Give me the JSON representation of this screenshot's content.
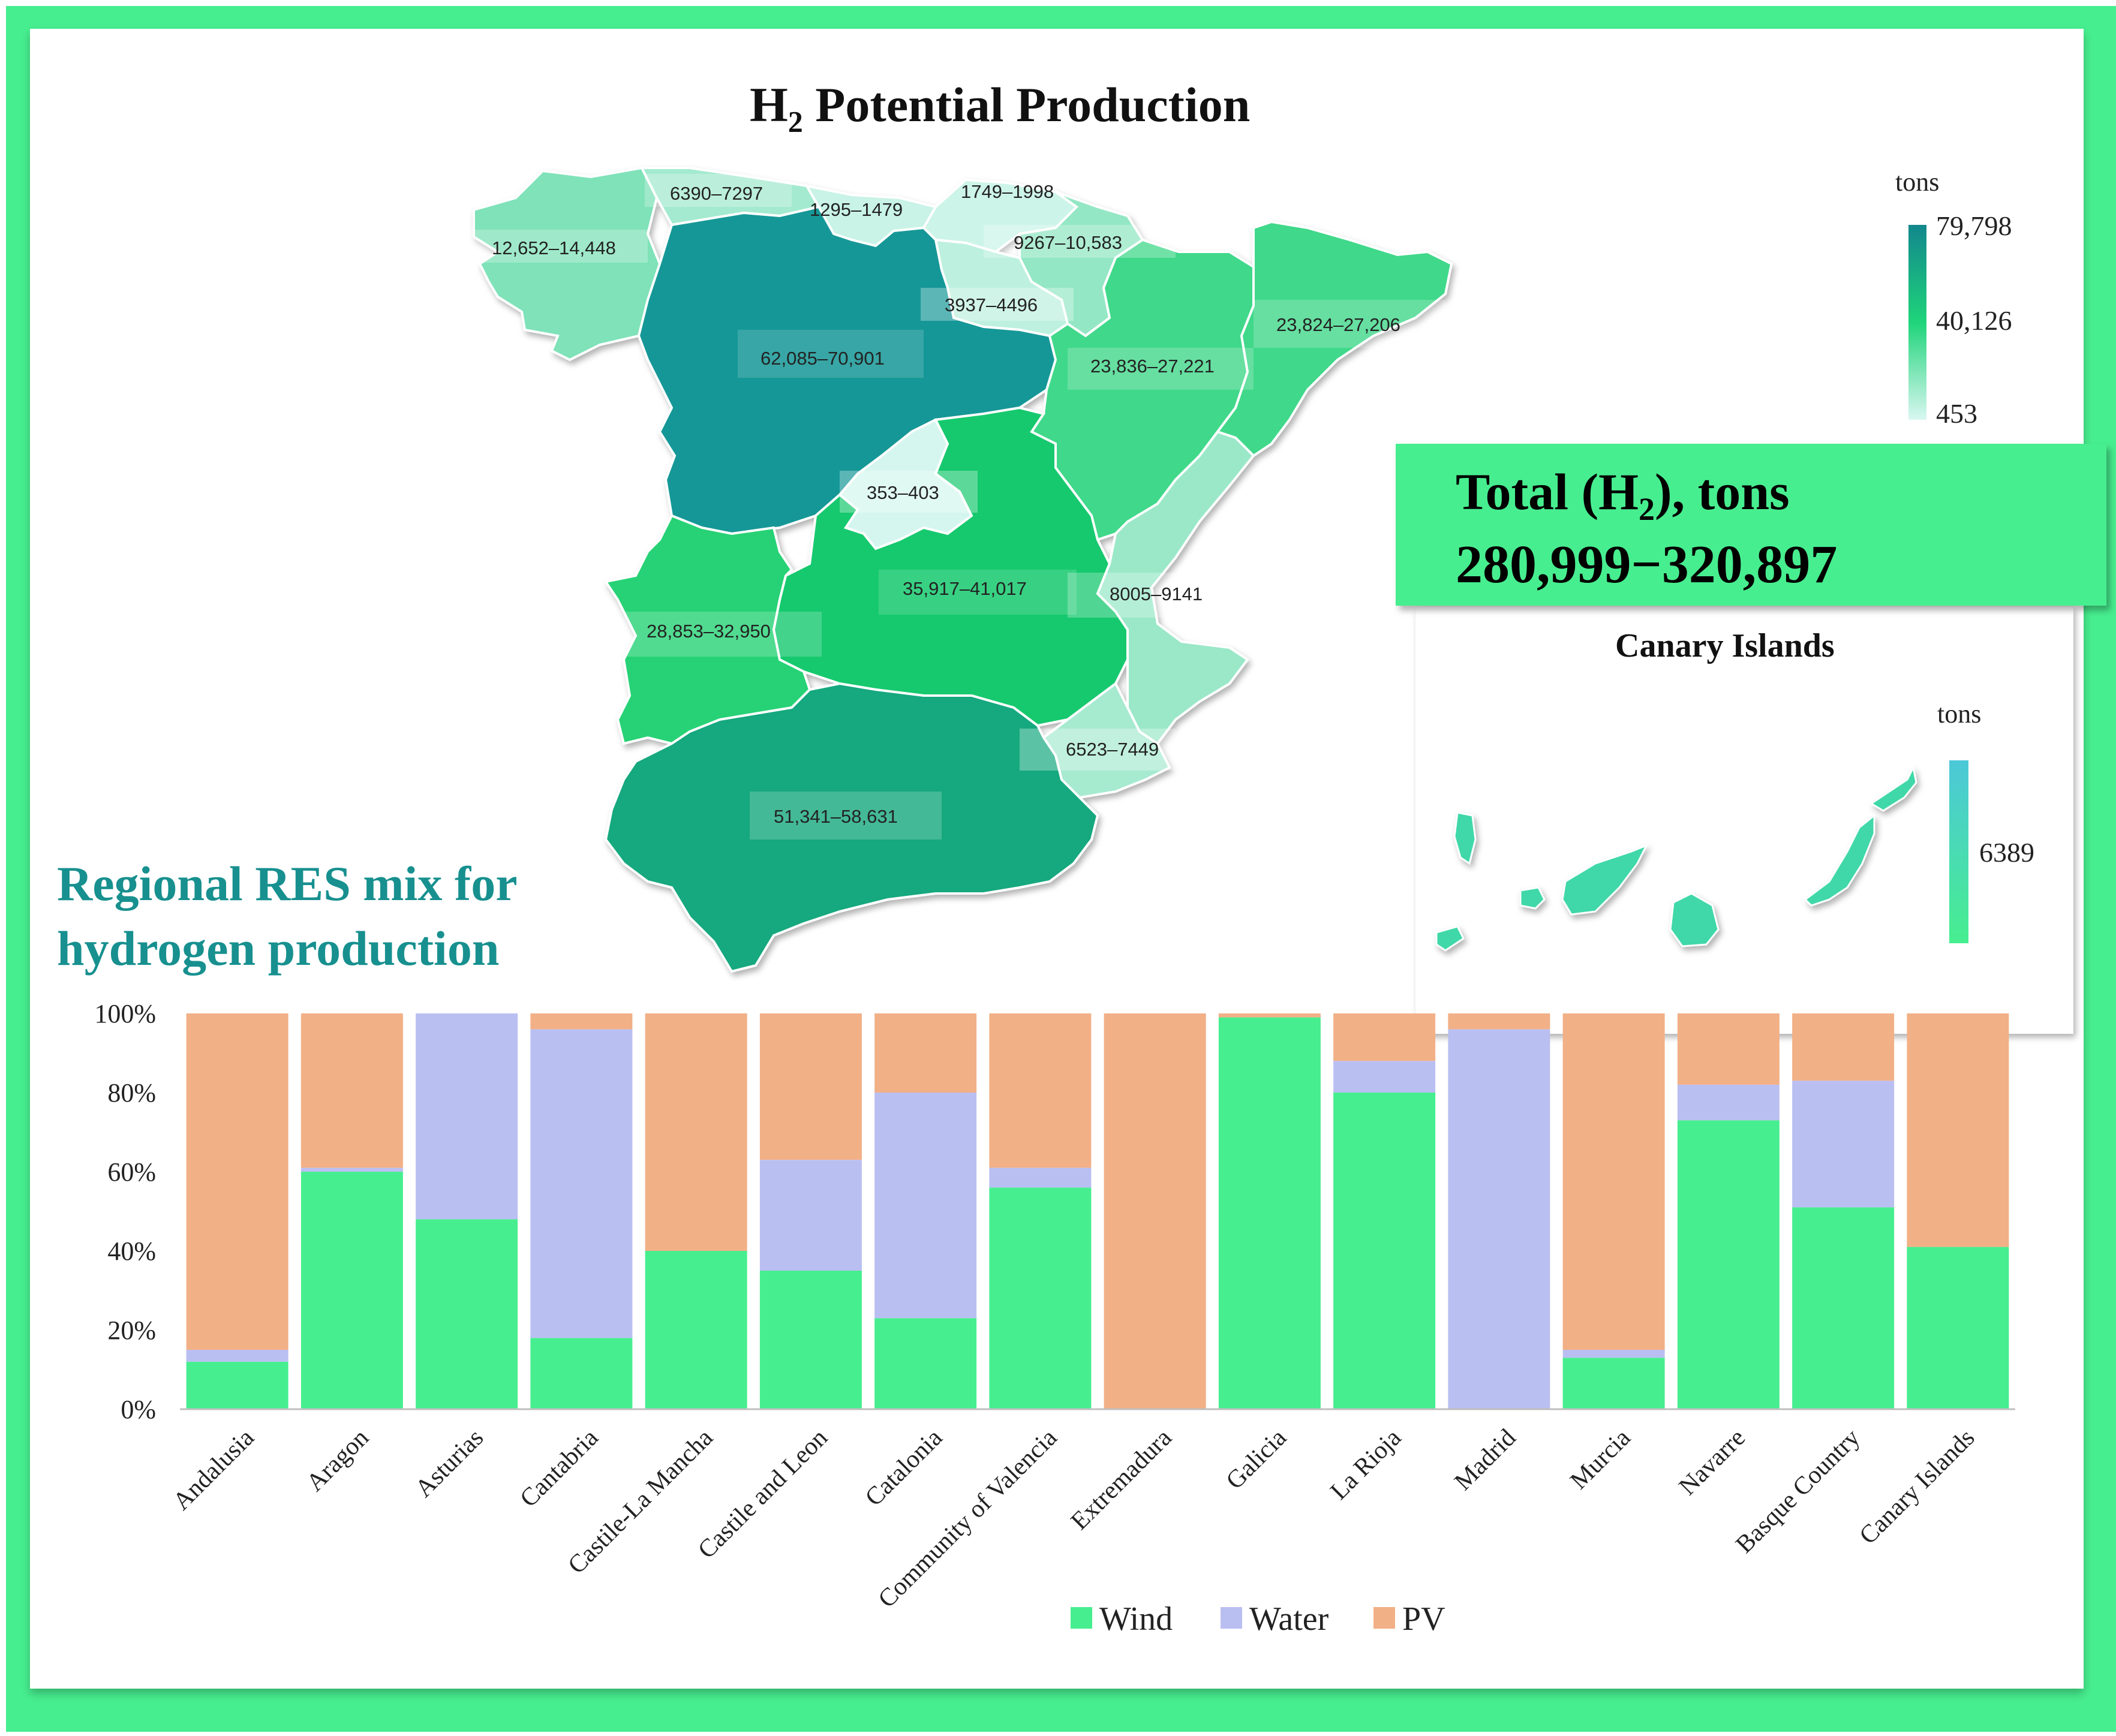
{
  "colors": {
    "frame": "#47ee8f",
    "wind": "#47ee8f",
    "water": "#babff2",
    "pv": "#f2b086",
    "title_teal": "#17908f"
  },
  "map": {
    "title_main": "H",
    "title_sub": "2",
    "title_rest": " Potential Production",
    "legend": {
      "unit": "tons",
      "max": "79,798",
      "mid": "40,126",
      "min": "453"
    },
    "regions": [
      {
        "name": "Galicia",
        "label": "12,652–14,448",
        "color": "#7fe2b8"
      },
      {
        "name": "Asturias",
        "label": "6390–7297",
        "color": "#a4ead0"
      },
      {
        "name": "Cantabria",
        "label": "1295–1479",
        "color": "#c8f3e6"
      },
      {
        "name": "Basque Country",
        "label": "1749–1998",
        "color": "#cdf4e8"
      },
      {
        "name": "Navarre",
        "label": "9267–10,583",
        "color": "#94e7c4"
      },
      {
        "name": "La Rioja",
        "label": "3937–4496",
        "color": "#bdf0df"
      },
      {
        "name": "Castile and Leon",
        "label": "62,085–70,901",
        "color": "#129797"
      },
      {
        "name": "Aragon",
        "label": "23,836–27,221",
        "color": "#3fd88a"
      },
      {
        "name": "Catalonia",
        "label": "23,824–27,206",
        "color": "#3fd88a"
      },
      {
        "name": "Madrid",
        "label": "353–403",
        "color": "#d4f6ee"
      },
      {
        "name": "Castile-La Mancha",
        "label": "35,917–41,017",
        "color": "#19c96e"
      },
      {
        "name": "Community of Valencia",
        "label": "8005–9141",
        "color": "#9be8c8"
      },
      {
        "name": "Extremadura",
        "label": "28,853–32,950",
        "color": "#28d274"
      },
      {
        "name": "Murcia",
        "label": "6523–7449",
        "color": "#a6ead0"
      },
      {
        "name": "Andalusia",
        "label": "51,341–58,631",
        "color": "#12a87e"
      }
    ]
  },
  "total": {
    "line1_a": "Total (H",
    "line1_sub": "2",
    "line1_b": "), tons",
    "line2": "280,999−320,897"
  },
  "canary": {
    "title": "Canary Islands",
    "legend_unit": "tons",
    "legend_value": "6389",
    "color": "#3fd8a8"
  },
  "res_title": {
    "line1": "Regional RES mix for",
    "line2": "hydrogen production"
  },
  "chart_data": {
    "type": "bar",
    "stacked": true,
    "percent": true,
    "title": "Regional RES mix for hydrogen production",
    "categories": [
      "Andalusia",
      "Aragon",
      "Asturias",
      "Cantabria",
      "Castile-La Mancha",
      "Castile and Leon",
      "Catalonia",
      "Community of Valencia",
      "Extremadura",
      "Galicia",
      "La Rioja",
      "Madrid",
      "Murcia",
      "Navarre",
      "Basque Country",
      "Canary Islands"
    ],
    "series": [
      {
        "name": "Wind",
        "values": [
          12,
          60,
          48,
          18,
          40,
          35,
          23,
          56,
          0,
          99,
          80,
          0,
          13,
          73,
          51,
          41
        ]
      },
      {
        "name": "Water",
        "values": [
          3,
          1,
          52,
          78,
          0,
          28,
          57,
          5,
          0,
          0,
          8,
          96,
          2,
          9,
          32,
          0
        ]
      },
      {
        "name": "PV",
        "values": [
          85,
          39,
          0,
          4,
          60,
          37,
          20,
          39,
          100,
          1,
          12,
          4,
          85,
          18,
          17,
          59
        ]
      }
    ],
    "yticks": [
      "0%",
      "20%",
      "40%",
      "60%",
      "80%",
      "100%"
    ],
    "ylim": [
      0,
      100
    ],
    "xlabel": "",
    "ylabel": "",
    "legend_position": "bottom"
  }
}
